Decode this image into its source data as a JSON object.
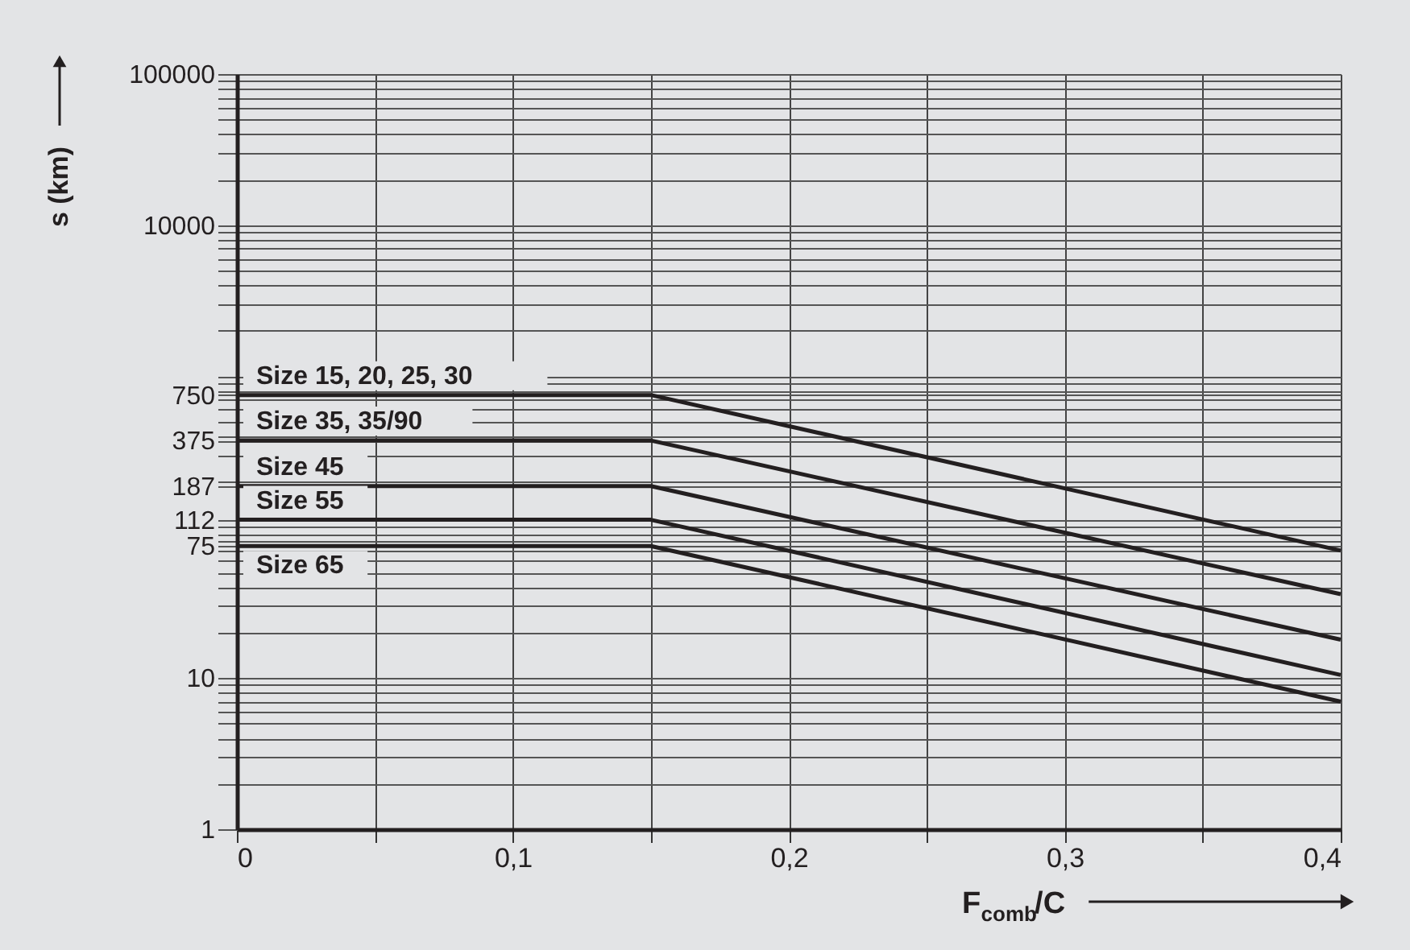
{
  "chart_data": {
    "type": "line",
    "xlabel": "F$_{comb}$/C",
    "ylabel": "s (km)",
    "log": "y",
    "grid": true,
    "marker": "none",
    "line_style": "solid",
    "xlim": [
      0,
      0.4
    ],
    "ylim": [
      1,
      100000
    ],
    "xticks": [
      {
        "value": 0,
        "label": "0"
      },
      {
        "value": 0.05,
        "label": null
      },
      {
        "value": 0.1,
        "label": "0,1"
      },
      {
        "value": 0.15,
        "label": null
      },
      {
        "value": 0.2,
        "label": "0,2"
      },
      {
        "value": 0.25,
        "label": null
      },
      {
        "value": 0.3,
        "label": "0,3"
      },
      {
        "value": 0.35,
        "label": null
      },
      {
        "value": 0.4,
        "label": "0,4"
      }
    ],
    "yticks": [
      1,
      {
        "value": 2,
        "label": null
      },
      {
        "value": 3,
        "label": null
      },
      {
        "value": 4,
        "label": null
      },
      {
        "value": 5,
        "label": null
      },
      {
        "value": 6,
        "label": null
      },
      {
        "value": 7,
        "label": null
      },
      {
        "value": 8,
        "label": null
      },
      {
        "value": 9,
        "label": null
      },
      10,
      {
        "value": 20,
        "label": null
      },
      {
        "value": 30,
        "label": null
      },
      {
        "value": 40,
        "label": null
      },
      {
        "value": 50,
        "label": null
      },
      {
        "value": 60,
        "label": null
      },
      {
        "value": 70,
        "label": null
      },
      75,
      {
        "value": 80,
        "label": null
      },
      {
        "value": 90,
        "label": null
      },
      {
        "value": 100,
        "label": null
      },
      112,
      187,
      {
        "value": 200,
        "label": null
      },
      {
        "value": 300,
        "label": null
      },
      375,
      {
        "value": 400,
        "label": null
      },
      {
        "value": 500,
        "label": null
      },
      {
        "value": 600,
        "label": null
      },
      {
        "value": 700,
        "label": null
      },
      750,
      {
        "value": 800,
        "label": null
      },
      {
        "value": 900,
        "label": null
      },
      {
        "value": 1000,
        "label": null
      },
      {
        "value": 2000,
        "label": null
      },
      {
        "value": 3000,
        "label": null
      },
      {
        "value": 4000,
        "label": null
      },
      {
        "value": 5000,
        "label": null
      },
      {
        "value": 6000,
        "label": null
      },
      {
        "value": 7000,
        "label": null
      },
      {
        "value": 8000,
        "label": null
      },
      {
        "value": 9000,
        "label": null
      },
      10000,
      {
        "value": 20000,
        "label": null
      },
      {
        "value": 30000,
        "label": null
      },
      {
        "value": 40000,
        "label": null
      },
      {
        "value": 50000,
        "label": null
      },
      {
        "value": 60000,
        "label": null
      },
      {
        "value": 70000,
        "label": null
      },
      {
        "value": 80000,
        "label": null
      },
      {
        "value": 90000,
        "label": null
      },
      100000
    ],
    "x": [
      0,
      0.15,
      0.4
    ],
    "series": [
      {
        "name": "Size 15, 20, 25, 30",
        "color": "#231f20",
        "values": [
          750,
          750,
          70
        ]
      },
      {
        "name": "Size 35, 35/90",
        "color": "#231f20",
        "values": [
          375,
          375,
          36
        ]
      },
      {
        "name": "Size 45",
        "color": "#231f20",
        "values": [
          187,
          187,
          18
        ]
      },
      {
        "name": "Size 55",
        "color": "#231f20",
        "values": [
          112,
          112,
          10.5
        ]
      },
      {
        "name": "Size 65",
        "color": "#231f20",
        "values": [
          75,
          75,
          7
        ]
      }
    ]
  }
}
